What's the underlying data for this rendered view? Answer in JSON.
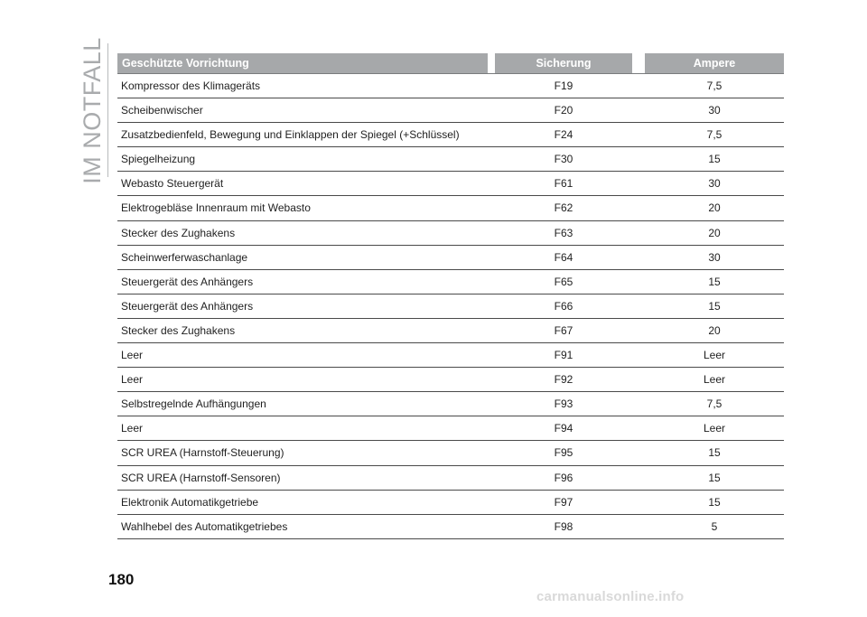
{
  "sidebar": {
    "section_title": "IM NOTFALL"
  },
  "page_number": "180",
  "table": {
    "headers": {
      "name": "Geschützte Vorrichtung",
      "fuse": "Sicherung",
      "ampere": "Ampere"
    },
    "rows": [
      {
        "name": "Kompressor des Klimageräts",
        "fuse": "F19",
        "ampere": "7,5"
      },
      {
        "name": "Scheibenwischer",
        "fuse": "F20",
        "ampere": "30"
      },
      {
        "name": "Zusatzbedienfeld, Bewegung und Einklappen der Spiegel (+Schlüssel)",
        "fuse": "F24",
        "ampere": "7,5"
      },
      {
        "name": "Spiegelheizung",
        "fuse": "F30",
        "ampere": "15"
      },
      {
        "name": "Webasto Steuergerät",
        "fuse": "F61",
        "ampere": "30"
      },
      {
        "name": "Elektrogebläse Innenraum mit Webasto",
        "fuse": "F62",
        "ampere": "20"
      },
      {
        "name": "Stecker des Zughakens",
        "fuse": "F63",
        "ampere": "20"
      },
      {
        "name": "Scheinwerferwaschanlage",
        "fuse": "F64",
        "ampere": "30"
      },
      {
        "name": "Steuergerät des Anhängers",
        "fuse": "F65",
        "ampere": "15"
      },
      {
        "name": "Steuergerät des Anhängers",
        "fuse": "F66",
        "ampere": "15"
      },
      {
        "name": "Stecker des Zughakens",
        "fuse": "F67",
        "ampere": "20"
      },
      {
        "name": "Leer",
        "fuse": "F91",
        "ampere": "Leer"
      },
      {
        "name": "Leer",
        "fuse": "F92",
        "ampere": "Leer"
      },
      {
        "name": "Selbstregelnde Aufhängungen",
        "fuse": "F93",
        "ampere": "7,5"
      },
      {
        "name": "Leer",
        "fuse": "F94",
        "ampere": "Leer"
      },
      {
        "name": "SCR UREA (Harnstoff-Steuerung)",
        "fuse": "F95",
        "ampere": "15"
      },
      {
        "name": "SCR UREA (Harnstoff-Sensoren)",
        "fuse": "F96",
        "ampere": "15"
      },
      {
        "name": "Elektronik Automatikgetriebe",
        "fuse": "F97",
        "ampere": "15"
      },
      {
        "name": "Wahlhebel des Automatikgetriebes",
        "fuse": "F98",
        "ampere": "5"
      }
    ]
  },
  "watermark": "carmanualsonline.info"
}
